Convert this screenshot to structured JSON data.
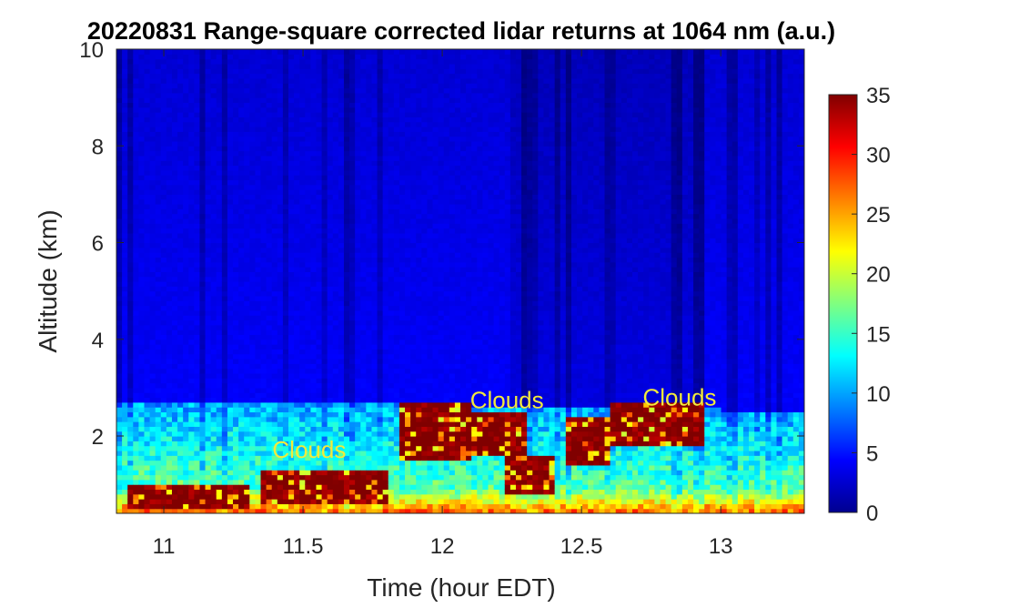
{
  "chart_data": {
    "type": "heatmap",
    "title": "20220831  Range-square corrected lidar returns at 1064 nm (a.u.)",
    "xlabel": "Time (hour EDT)",
    "ylabel": "Altitude (km)",
    "xlim": [
      10.83,
      13.3
    ],
    "ylim": [
      0.4,
      10
    ],
    "x_ticks": [
      11,
      11.5,
      12,
      12.5,
      13
    ],
    "x_tick_labels": [
      "11",
      "11.5",
      "12",
      "12.5",
      "13"
    ],
    "y_ticks": [
      2,
      4,
      6,
      8,
      10
    ],
    "y_tick_labels": [
      "2",
      "4",
      "6",
      "8",
      "10"
    ],
    "colorbar": {
      "colormap": "jet",
      "min": 0,
      "max": 35,
      "ticks": [
        0,
        5,
        10,
        15,
        20,
        25,
        30,
        35
      ],
      "tick_labels": [
        "0",
        "5",
        "10",
        "15",
        "20",
        "25",
        "30",
        "35"
      ]
    },
    "boundary_layer_top_km": [
      {
        "x": 10.83,
        "y": 2.72
      },
      {
        "x": 11.5,
        "y": 2.68
      },
      {
        "x": 12.0,
        "y": 2.65
      },
      {
        "x": 12.5,
        "y": 2.6
      },
      {
        "x": 13.0,
        "y": 2.55
      },
      {
        "x": 13.3,
        "y": 2.52
      }
    ],
    "cloud_layers": [
      {
        "x_start": 10.86,
        "x_end": 11.3,
        "base_km": 0.55,
        "top_km": 0.95
      },
      {
        "x_start": 11.35,
        "x_end": 11.8,
        "base_km": 0.6,
        "top_km": 1.25
      },
      {
        "x_start": 11.85,
        "x_end": 12.1,
        "base_km": 1.5,
        "top_km": 2.65
      },
      {
        "x_start": 12.1,
        "x_end": 12.3,
        "base_km": 1.6,
        "top_km": 2.5
      },
      {
        "x_start": 12.23,
        "x_end": 12.4,
        "base_km": 0.85,
        "top_km": 1.55
      },
      {
        "x_start": 12.45,
        "x_end": 12.6,
        "base_km": 1.4,
        "top_km": 2.4
      },
      {
        "x_start": 12.6,
        "x_end": 12.95,
        "base_km": 1.8,
        "top_km": 2.65
      }
    ],
    "annotations": [
      {
        "text": "Clouds",
        "x": 11.39,
        "y": 1.55
      },
      {
        "text": "Clouds",
        "x": 12.1,
        "y": 2.57
      },
      {
        "text": "Clouds",
        "x": 12.72,
        "y": 2.63
      }
    ]
  },
  "colors": {
    "jet_low": "#00008f",
    "jet_high": "#800000",
    "annotation": "#f2ea3c"
  }
}
